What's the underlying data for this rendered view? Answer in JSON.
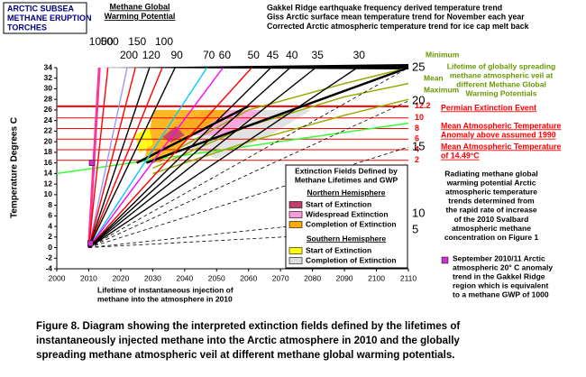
{
  "chart_data": {
    "type": "line",
    "y_label": "Temperature Degrees C",
    "xlim": [
      2000,
      2110
    ],
    "ylim": [
      -4,
      34
    ],
    "xticks": [
      2000,
      2010,
      2020,
      2030,
      2040,
      2050,
      2060,
      2070,
      2080,
      2090,
      2100,
      2110
    ],
    "yticks": [
      -4,
      -2,
      0,
      2,
      4,
      6,
      8,
      10,
      12,
      14,
      16,
      18,
      20,
      22,
      24,
      26,
      28,
      30,
      32,
      34
    ],
    "series": [
      {
        "name": "1000",
        "color": "#ff3399",
        "x": [
          2010,
          2013.3
        ],
        "values": [
          0,
          34
        ]
      },
      {
        "name": "500",
        "color": "#ff0000",
        "x": [
          2010,
          2016
        ],
        "values": [
          0,
          34
        ]
      },
      {
        "name": "200",
        "color": "#9999ff",
        "x": [
          2010,
          2022
        ],
        "values": [
          0,
          34
        ]
      },
      {
        "name": "150",
        "color": "#ff0000",
        "x": [
          2010,
          2024.6
        ],
        "values": [
          0,
          34
        ]
      },
      {
        "name": "120",
        "color": "#000000",
        "x": [
          2010,
          2029
        ],
        "values": [
          0,
          34
        ]
      },
      {
        "name": "100",
        "color": "#ff0000",
        "x": [
          2010,
          2033
        ],
        "values": [
          0,
          34
        ]
      },
      {
        "name": "90",
        "color": "#000000",
        "x": [
          2010,
          2037
        ],
        "values": [
          0,
          34
        ]
      },
      {
        "name": "70",
        "color": "#00ccff",
        "x": [
          2010,
          2047
        ],
        "values": [
          0,
          34
        ]
      },
      {
        "name": "60",
        "color": "#ff00ff",
        "x": [
          2010,
          2052
        ],
        "values": [
          0,
          34
        ]
      },
      {
        "name": "50",
        "color": "#ff0000",
        "x": [
          2010,
          2061
        ],
        "values": [
          0,
          34
        ]
      },
      {
        "name": "45",
        "color": "#000000",
        "x": [
          2010,
          2067
        ],
        "values": [
          0,
          34
        ]
      },
      {
        "name": "40",
        "color": "#000000",
        "x": [
          2010,
          2073
        ],
        "values": [
          0,
          34
        ]
      },
      {
        "name": "35",
        "color": "#000000",
        "x": [
          2010,
          2081
        ],
        "values": [
          0,
          34
        ]
      },
      {
        "name": "30",
        "color": "#000000",
        "x": [
          2010,
          2094
        ],
        "values": [
          0,
          34
        ]
      },
      {
        "name": "25",
        "color": "#000000",
        "x": [
          2010,
          2110
        ],
        "values": [
          0,
          34
        ]
      },
      {
        "name": "20",
        "color": "#000000",
        "x": [
          2010,
          2110
        ],
        "values": [
          0,
          27.7
        ]
      },
      {
        "name": "15",
        "color": "#000000",
        "x": [
          2010,
          2110
        ],
        "values": [
          0,
          19
        ]
      },
      {
        "name": "10",
        "color": "#000000",
        "x": [
          2010,
          2110
        ],
        "values": [
          0,
          6.4
        ]
      },
      {
        "name": "5",
        "color": "#000000",
        "x": [
          2010,
          2110
        ],
        "values": [
          0,
          3.3
        ]
      }
    ],
    "trend_lines": [
      {
        "color": "#33ff33",
        "x": [
          2000,
          2110
        ],
        "values": [
          14,
          23.5
        ]
      },
      {
        "color": "#99aa00",
        "x": [
          2030,
          2060,
          2090,
          2110
        ],
        "values": [
          16,
          26,
          31,
          34
        ]
      },
      {
        "color": "#99aa00",
        "x": [
          2030,
          2060,
          2090,
          2110
        ],
        "values": [
          15,
          23,
          28.5,
          31
        ]
      },
      {
        "color": "#99aa00",
        "x": [
          2030,
          2060,
          2090,
          2110
        ],
        "values": [
          14,
          20,
          25,
          28
        ]
      },
      {
        "color": "#000000",
        "x": [
          2028,
          2110
        ],
        "values": [
          16,
          34
        ]
      },
      {
        "color": "#000000",
        "x": [
          2025,
          2060
        ],
        "values": [
          16,
          26.7
        ]
      }
    ],
    "levels": [
      {
        "label": "12.2",
        "value": 26.7
      },
      {
        "label": "10",
        "value": 24.5
      },
      {
        "label": "8",
        "value": 22.5
      },
      {
        "label": "6",
        "value": 20.5
      },
      {
        "label": "4",
        "value": 18.5
      },
      {
        "label": "2",
        "value": 16.5
      }
    ],
    "level_color": "#ff0000",
    "points": {
      "color": "#cc33cc",
      "x": [
        2010.5,
        2011
      ],
      "values": [
        0.8,
        16
      ]
    },
    "annotations": [
      {
        "lines": [
          "ARCTIC SUBSEA",
          "METHANE ERUPTION",
          "TORCHES"
        ]
      },
      {
        "lines": [
          "Methane Global",
          "Warming Potential"
        ]
      },
      {
        "lines": [
          "Gakkel Ridge earthquake frequency derived temperature trend",
          "Giss Arctic surface mean temperature trend for November each year",
          "Corrected Arctic atmospheric temperature trend for ice cap melt back"
        ]
      },
      {
        "lines": [
          "Minimum"
        ]
      },
      {
        "lines": [
          "Mean"
        ]
      },
      {
        "lines": [
          "Maximum"
        ]
      },
      {
        "lines": [
          "Lifetime of globally spreading",
          "methane atmospheric veil at",
          "different Methane Global",
          "Warming Potentials"
        ]
      },
      {
        "lines": [
          "Permian Extinction Event"
        ]
      },
      {
        "lines": [
          "Mean Atmospheric Temperature",
          "Anomaly above assumed 1990"
        ]
      },
      {
        "lines": [
          "Mean Atmospheric Temperature",
          "of 14.49°C"
        ]
      },
      {
        "lines": [
          "Radiating methane global",
          "warming potential Arctic",
          "atmospheric temperature",
          "trends determined from",
          "the rapid rate of increase",
          "of the 2010 Svalbard",
          "atmospheric methane",
          "concentration on Figure 1"
        ]
      },
      {
        "lines": [
          "September 2010/11 Arctic",
          "atmospheric 20° C anomaly",
          "trend in the Gakkel Ridge",
          "region which is equivalent",
          "to a methane GWP of 1000"
        ]
      },
      {
        "lines": [
          "Lifetime of instantaneous injection of",
          "methane into the atmosphere in 2010"
        ]
      }
    ],
    "legend": {
      "title": [
        "Extinction Fields Defined by",
        "Methane Lifetimes and GWP"
      ],
      "groups": [
        {
          "title": "Northern Hemisphere",
          "items": [
            {
              "label": "Start of Extinction",
              "color": "#c0406a"
            },
            {
              "label": "Widespread Extinction",
              "color": "#ff99dd"
            },
            {
              "label": "Completion of Extinction",
              "color": "#ffaa00"
            }
          ]
        },
        {
          "title": "Southern Hemisphere",
          "items": [
            {
              "label": "Start of Extinction",
              "color": "#ffff00"
            },
            {
              "label": "Completion of Extinction",
              "color": "#dddddd"
            }
          ]
        }
      ]
    },
    "caption": [
      "Figure 8. Diagram showing the interpreted extinction fields defined by the lifetimes of",
      "instantaneously injected methane into the Arctic atmosphere in 2010 and the globally",
      "spreading methane atmospheric veil at different methane global warming potentials."
    ]
  }
}
